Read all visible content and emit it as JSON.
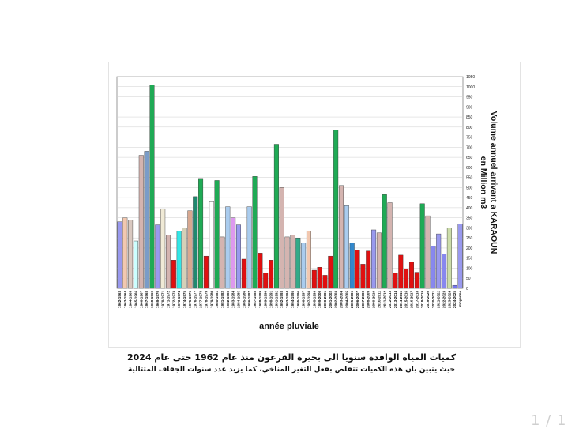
{
  "chart_data": {
    "type": "bar",
    "categories": [
      "1962-1963",
      "1963-1964",
      "1964-1965",
      "1965-1966",
      "1966-1967",
      "1967-1968",
      "1968-1969",
      "1969-1970",
      "1970-1971",
      "1971-1972",
      "1972-1973",
      "1973-1974",
      "1974-1975",
      "1975-1976",
      "1976-1977",
      "1977-1978",
      "1978-1979",
      "1979-1980",
      "1980-1981",
      "1981-1982",
      "1982-1983",
      "1983-1984",
      "1984-1985",
      "1985-1986",
      "1986-1987",
      "1987-1988",
      "1988-1989",
      "1989-1990",
      "1990-1991",
      "1991-1992",
      "1992-1993",
      "1993-1994",
      "1994-1995",
      "1995-1996",
      "1996-1997",
      "1997-1998",
      "1998-1999",
      "1999-2000",
      "2000-2001",
      "2001-2002",
      "2002-2003",
      "2003-2004",
      "2004-2005",
      "2005-2006",
      "2006-2007",
      "2007-2008",
      "2008-2009",
      "2009-2010",
      "2010-2011",
      "2011-2012",
      "2012-2013",
      "2013-2014",
      "2014-2015",
      "2015-2016",
      "2016-2017",
      "2017-2018",
      "2018-2019",
      "2019-2020",
      "2020-2021",
      "2021-2022",
      "2022-2023",
      "2023-2024",
      "2024-2025",
      "moyenne"
    ],
    "values": [
      330,
      350,
      340,
      235,
      660,
      680,
      1010,
      315,
      395,
      265,
      140,
      285,
      300,
      385,
      455,
      545,
      160,
      430,
      535,
      255,
      405,
      350,
      315,
      145,
      405,
      555,
      175,
      75,
      140,
      715,
      500,
      255,
      265,
      250,
      225,
      285,
      90,
      105,
      65,
      160,
      785,
      510,
      410,
      225,
      190,
      120,
      185,
      290,
      275,
      465,
      425,
      75,
      165,
      95,
      130,
      80,
      420,
      360,
      210,
      270,
      170,
      300,
      15,
      320
    ],
    "colors": [
      "#9999ee",
      "#f2c8b0",
      "#d9c8c0",
      "#ccffff",
      "#d4b4b0",
      "#7a9cc8",
      "#1faa55",
      "#9999ee",
      "#f0ead6",
      "#d4b4b0",
      "#e01010",
      "#33e6e6",
      "#d4d0b8",
      "#d8a890",
      "#1f8a70",
      "#1faa55",
      "#e01010",
      "#ffffff",
      "#1faa55",
      "#d4b4b0",
      "#aaccee",
      "#dd99ee",
      "#9999ee",
      "#e01010",
      "#aaccee",
      "#1faa55",
      "#e01010",
      "#e01010",
      "#e01010",
      "#1faa55",
      "#d4b4b0",
      "#d4b4b0",
      "#d4b4b0",
      "#33aa88",
      "#aaccee",
      "#f2c8b0",
      "#e01010",
      "#e01010",
      "#e01010",
      "#e01010",
      "#1faa55",
      "#d4b4b0",
      "#aaccee",
      "#3388cc",
      "#e01010",
      "#e01010",
      "#e01010",
      "#9999ee",
      "#d4b4b0",
      "#1faa55",
      "#d4b4b0",
      "#e01010",
      "#e01010",
      "#e01010",
      "#e01010",
      "#e01010",
      "#1faa55",
      "#d4b4b0",
      "#8888ee",
      "#9999ee",
      "#8888ee",
      "#ccddaa",
      "#7777ee",
      "#9999ee"
    ],
    "xlabel": "année pluviale",
    "ylabel": "Volume annuel arrivant a KARAOUN",
    "ylabel2": "en Million m3",
    "ylim": [
      0,
      1050
    ],
    "yticks": [
      0,
      50,
      100,
      150,
      200,
      250,
      300,
      350,
      400,
      450,
      500,
      550,
      600,
      650,
      700,
      750,
      800,
      850,
      900,
      950,
      1000,
      1050
    ],
    "y_axis_side": "right",
    "grid": true,
    "legend": "none"
  },
  "captions": {
    "line1": "كميات المياه الوافدة سنويا الى بحيرة القرعون منذ عام 1962 حتى عام 2024",
    "line2": "حيث يتبين بان هذه الكميات تتقلص بفعل التغير المناخي، كما يزيد عدد سنوات الجفاف المتتالية"
  },
  "page_indicator": "1 / 1"
}
